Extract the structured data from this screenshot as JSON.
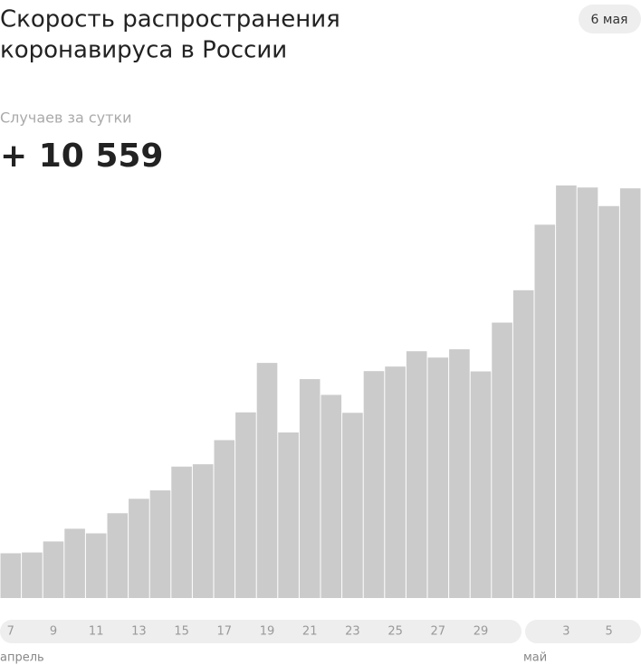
{
  "chart_data": {
    "type": "bar",
    "title": [
      "Скорость распространения",
      "коронавируса в России"
    ],
    "date_badge": "6 мая",
    "subtitle": "Случаев за сутки",
    "highlight": "+ 10 559",
    "color": "#cbcbcb",
    "categories": [
      "7",
      null,
      "9",
      null,
      "11",
      null,
      "13",
      null,
      "15",
      null,
      "17",
      null,
      "19",
      null,
      "21",
      null,
      "23",
      null,
      "25",
      null,
      "27",
      null,
      "29",
      null,
      null,
      null,
      "3",
      null,
      "5",
      null
    ],
    "values": [
      1154,
      1175,
      1459,
      1786,
      1667,
      2186,
      2558,
      2774,
      3388,
      3448,
      4070,
      4785,
      6060,
      4268,
      5642,
      5236,
      4774,
      5849,
      5966,
      6361,
      6198,
      6411,
      5841,
      7099,
      7933,
      9623,
      10633,
      10581,
      10102,
      10559
    ],
    "months": [
      "апрель",
      "май"
    ]
  }
}
